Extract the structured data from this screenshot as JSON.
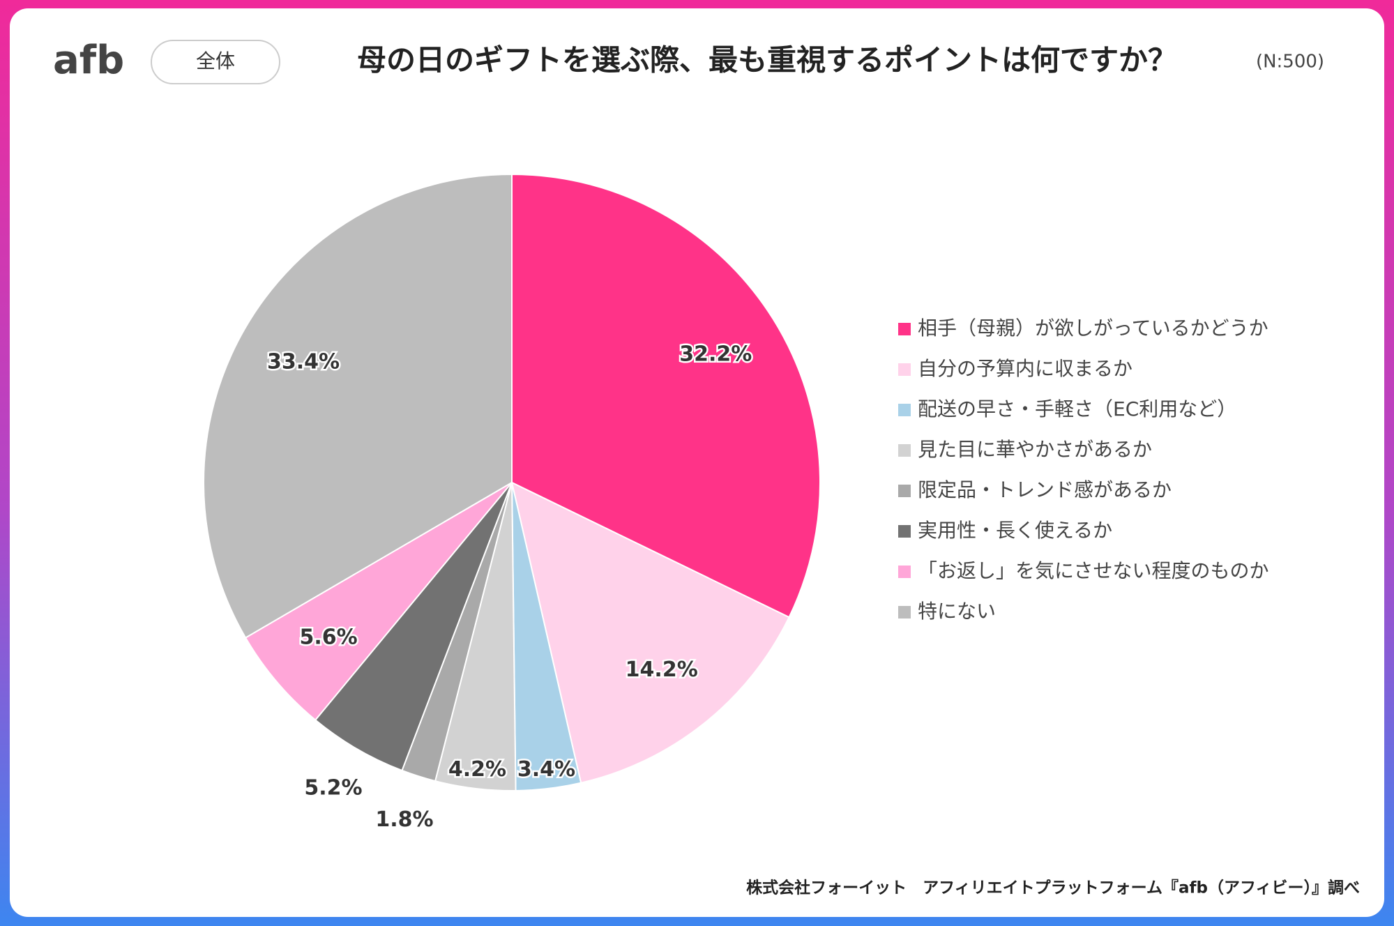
{
  "header": {
    "logo": "afb",
    "badge": "全体",
    "note": "(N:500)"
  },
  "chart_data": {
    "type": "pie",
    "title": "母の日のギフトを選ぶ際、最も重視するポイントは何ですか？",
    "categories": [
      "相手（母親）が欲しがっているかどうか",
      "自分の予算内に収まるか",
      "配送の早さ・手軽さ（EC利用など）",
      "見た目に華やかさがあるか",
      "限定品・トレンド感があるか",
      "実用性・長く使えるか",
      "「お返し」を気にさせない程度のものか",
      "特にない"
    ],
    "values": [
      32.2,
      14.2,
      3.4,
      4.2,
      1.8,
      5.2,
      5.6,
      33.4
    ],
    "value_labels": [
      "32.2%",
      "14.2%",
      "3.4%",
      "4.2%",
      "1.8%",
      "5.2%",
      "5.6%",
      "33.4%"
    ],
    "colors": [
      "#ff3388",
      "#ffd2ea",
      "#a9d1e8",
      "#d2d2d2",
      "#a9a9a9",
      "#727272",
      "#ffa6d8",
      "#bdbdbd"
    ],
    "legend": "right"
  },
  "footer": {
    "source": "株式会社フォーイット　アフィリエイトプラットフォーム『afb（アフィビー）』調べ"
  }
}
